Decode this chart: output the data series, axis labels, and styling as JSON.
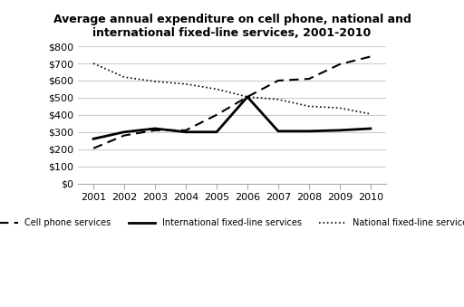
{
  "title": "Average annual expenditure on cell phone, national and\ninternational fixed-line services, 2001-2010",
  "years": [
    2001,
    2002,
    2003,
    2004,
    2005,
    2006,
    2007,
    2008,
    2009,
    2010
  ],
  "cell_phone": [
    205,
    280,
    310,
    310,
    400,
    505,
    600,
    610,
    695,
    740
  ],
  "intl_fixed": [
    260,
    300,
    320,
    300,
    300,
    505,
    305,
    305,
    310,
    320
  ],
  "natl_fixed": [
    700,
    620,
    595,
    580,
    550,
    505,
    490,
    450,
    440,
    405
  ],
  "ylim": [
    0,
    800
  ],
  "yticks": [
    0,
    100,
    200,
    300,
    400,
    500,
    600,
    700,
    800
  ],
  "ytick_labels": [
    "$0",
    "$100",
    "$200",
    "$300",
    "$400",
    "$500",
    "$600",
    "$700",
    "$800"
  ],
  "legend_cell": "Cell phone services",
  "legend_intl": "International fixed-line services",
  "legend_natl": "National fixed-line services",
  "background_color": "#ffffff",
  "grid_color": "#cccccc",
  "line_color": "#000000"
}
